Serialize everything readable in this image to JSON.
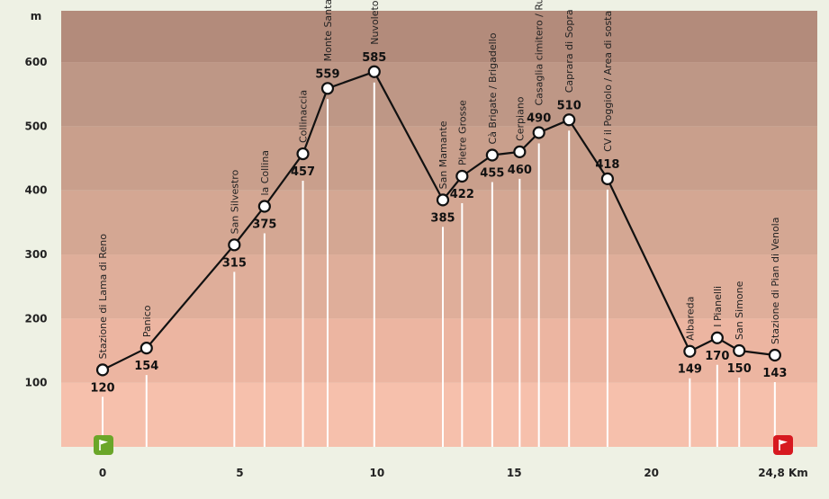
{
  "chart_data": {
    "type": "line",
    "ylabel": "m",
    "xlabel": "",
    "title": "",
    "ylim": [
      0,
      680
    ],
    "xlim": [
      0,
      24.8
    ],
    "y_ticks": [
      100,
      200,
      300,
      400,
      500,
      600
    ],
    "y_tick_labels": [
      "100",
      "200",
      "300",
      "400",
      "500",
      "600"
    ],
    "x_ticks": [
      0,
      5,
      10,
      15,
      20,
      24.8
    ],
    "x_tick_labels": [
      "0",
      "5",
      "10",
      "15",
      "20",
      "24,8 Km"
    ],
    "bands": [
      {
        "from": 0,
        "to": 100,
        "color": "#f6c0ac"
      },
      {
        "from": 100,
        "to": 200,
        "color": "#ecb5a1"
      },
      {
        "from": 200,
        "to": 300,
        "color": "#dfae9a"
      },
      {
        "from": 300,
        "to": 400,
        "color": "#d4a793"
      },
      {
        "from": 400,
        "to": 500,
        "color": "#c99f8c"
      },
      {
        "from": 500,
        "to": 600,
        "color": "#be9786"
      },
      {
        "from": 600,
        "to": 680,
        "color": "#b38b7b"
      }
    ],
    "colors": {
      "line": "#111111",
      "stem": "#ffffff",
      "start_flag": "#6aa629",
      "end_flag": "#d71920"
    },
    "points": [
      {
        "x": 0.0,
        "y": 120,
        "label": "120",
        "name": "Stazione di Lama di Reno",
        "vpos": "below"
      },
      {
        "x": 1.6,
        "y": 154,
        "label": "154",
        "name": "Panico",
        "vpos": "below"
      },
      {
        "x": 4.8,
        "y": 315,
        "label": "315",
        "name": "San Silvestro",
        "vpos": "below"
      },
      {
        "x": 5.9,
        "y": 375,
        "label": "375",
        "name": "la Collina",
        "vpos": "below"
      },
      {
        "x": 7.3,
        "y": 457,
        "label": "457",
        "name": "Collinaccia",
        "vpos": "below"
      },
      {
        "x": 8.2,
        "y": 559,
        "label": "559",
        "name": "Monte Santa Barbara",
        "vpos": "above"
      },
      {
        "x": 9.9,
        "y": 585,
        "label": "585",
        "name": "Nuvoleto",
        "vpos": "above"
      },
      {
        "x": 12.4,
        "y": 385,
        "label": "385",
        "name": "San Mamante",
        "vpos": "below"
      },
      {
        "x": 13.1,
        "y": 422,
        "label": "422",
        "name": "Pietre Grosse",
        "vpos": "below"
      },
      {
        "x": 14.2,
        "y": 455,
        "label": "455",
        "name": "Cà Brigate / Brigadello",
        "vpos": "below"
      },
      {
        "x": 15.2,
        "y": 460,
        "label": "460",
        "name": "Cerpiano",
        "vpos": "below"
      },
      {
        "x": 15.9,
        "y": 490,
        "label": "490",
        "name": "Casaglia cimitero / Ruderi",
        "vpos": "above"
      },
      {
        "x": 17.0,
        "y": 510,
        "label": "510",
        "name": "Caprara di Sopra",
        "vpos": "above"
      },
      {
        "x": 18.4,
        "y": 418,
        "label": "418",
        "name": "CV il Poggiolo / Area di sosta",
        "vpos": "above"
      },
      {
        "x": 21.4,
        "y": 149,
        "label": "149",
        "name": "Albareda",
        "vpos": "below"
      },
      {
        "x": 22.4,
        "y": 170,
        "label": "170",
        "name": "I Pianelli",
        "vpos": "below"
      },
      {
        "x": 23.2,
        "y": 150,
        "label": "150",
        "name": "San Simone",
        "vpos": "below"
      },
      {
        "x": 24.5,
        "y": 143,
        "label": "143",
        "name": "Stazione di Pian di Venola",
        "vpos": "below"
      }
    ]
  }
}
